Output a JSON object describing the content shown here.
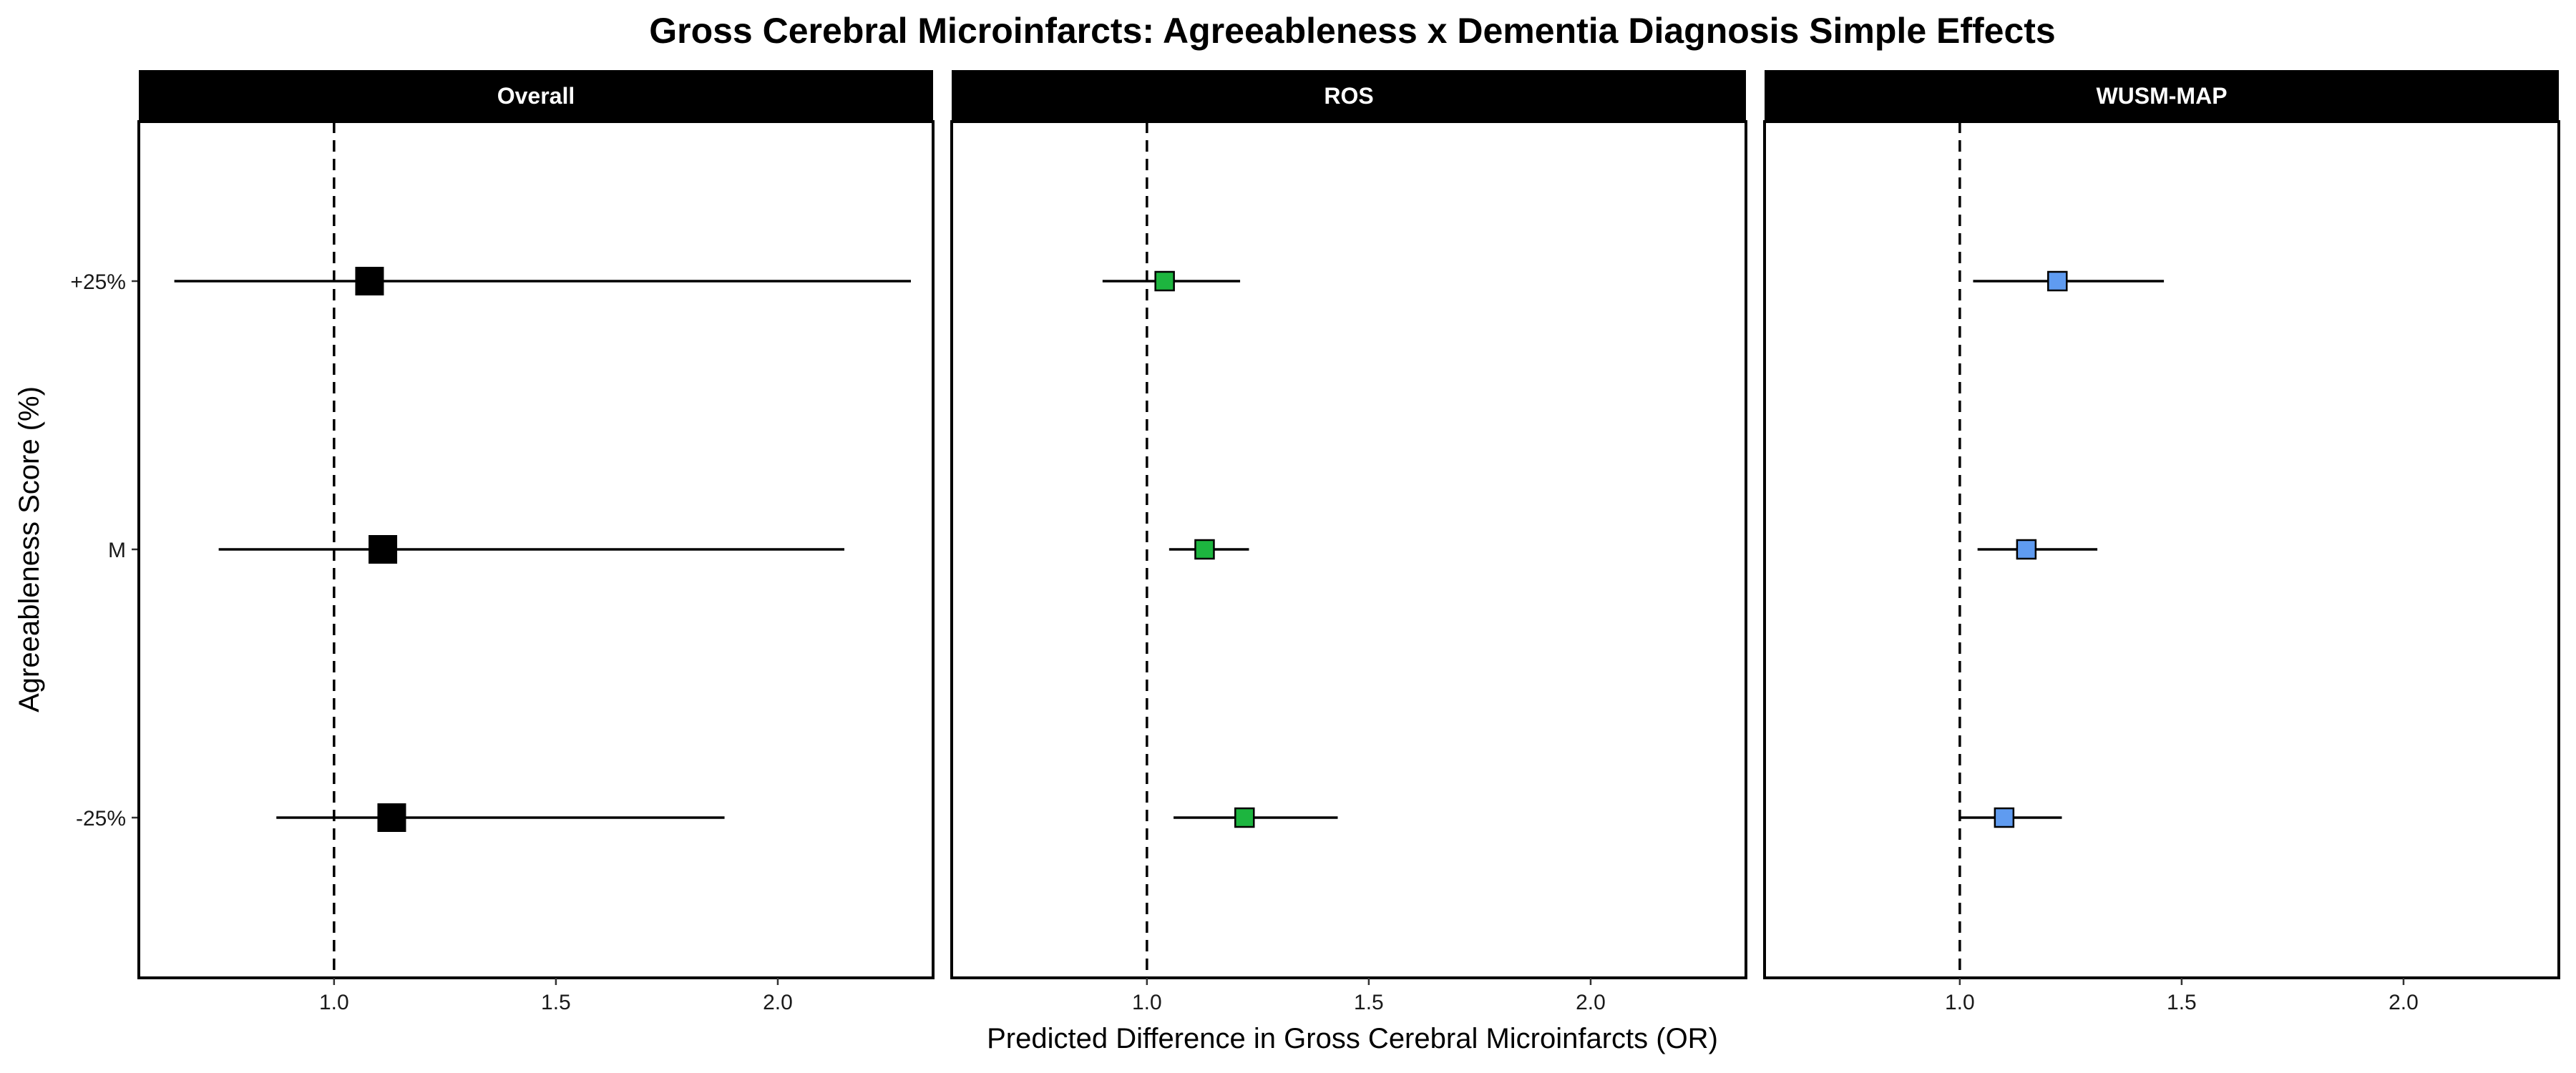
{
  "chart_data": {
    "type": "forest",
    "title": "Gross Cerebral Microinfarcts: Agreeableness x Dementia Diagnosis Simple Effects",
    "xlabel": "Predicted Difference in Gross Cerebral Microinfarcts (OR)",
    "ylabel": "Agreeableness Score (%)",
    "xlim": [
      0.56,
      2.35
    ],
    "x_ticks": [
      1.0,
      1.5,
      2.0
    ],
    "x_tick_labels": [
      "1.0",
      "1.5",
      "2.0"
    ],
    "categories": [
      "-25%",
      "M",
      "+25%"
    ],
    "reference_line": 1.0,
    "grid": false,
    "facets": [
      {
        "name": "Overall",
        "color": "#000000",
        "points": [
          {
            "category": "+25%",
            "estimate": 1.08,
            "lower": 0.64,
            "upper": 2.3
          },
          {
            "category": "M",
            "estimate": 1.11,
            "lower": 0.74,
            "upper": 2.15
          },
          {
            "category": "-25%",
            "estimate": 1.13,
            "lower": 0.87,
            "upper": 1.88
          }
        ]
      },
      {
        "name": "ROS",
        "color": "#1db53f",
        "points": [
          {
            "category": "+25%",
            "estimate": 1.04,
            "lower": 0.9,
            "upper": 1.21
          },
          {
            "category": "M",
            "estimate": 1.13,
            "lower": 1.05,
            "upper": 1.23
          },
          {
            "category": "-25%",
            "estimate": 1.22,
            "lower": 1.06,
            "upper": 1.43
          }
        ]
      },
      {
        "name": "WUSM-MAP",
        "color": "#5f9bf0",
        "points": [
          {
            "category": "+25%",
            "estimate": 1.22,
            "lower": 1.03,
            "upper": 1.46
          },
          {
            "category": "M",
            "estimate": 1.15,
            "lower": 1.04,
            "upper": 1.31
          },
          {
            "category": "-25%",
            "estimate": 1.1,
            "lower": 1.0,
            "upper": 1.23
          }
        ]
      }
    ]
  }
}
